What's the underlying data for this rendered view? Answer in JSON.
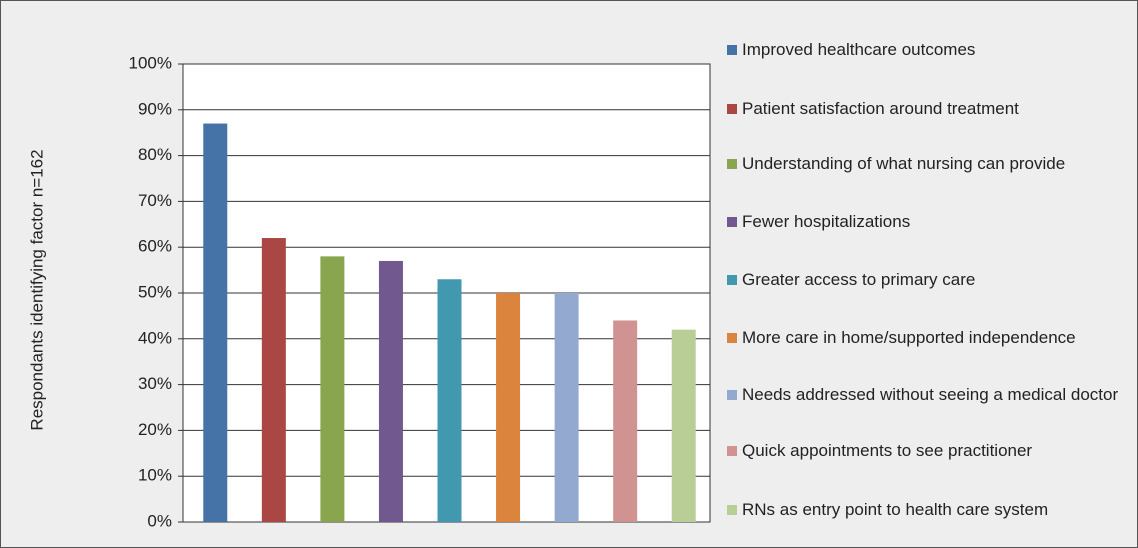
{
  "chart_data": {
    "type": "bar",
    "y_label": "Respondants identifying factor n=162",
    "categories": [
      "Improved healthcare outcomes",
      "Patient satisfaction around treatment",
      "Understanding of what nursing can provide",
      "Fewer hospitalizations",
      "Greater access to primary care",
      "More care in home/supported independence",
      "Needs addressed without seeing a medical doctor",
      "Quick appointments to see practitioner",
      "RNs as entry point to health care system"
    ],
    "values": [
      87,
      62,
      58,
      57,
      53,
      50,
      50,
      44,
      42
    ],
    "colors": [
      "#4572a7",
      "#aa4643",
      "#89a54e",
      "#71588f",
      "#4198af",
      "#db843d",
      "#93a9cf",
      "#d19392",
      "#b9cd96"
    ],
    "ylim": [
      0,
      100
    ],
    "yticks": [
      {
        "value": 0,
        "label": "0%"
      },
      {
        "value": 10,
        "label": "10%"
      },
      {
        "value": 20,
        "label": "20%"
      },
      {
        "value": 30,
        "label": "30%"
      },
      {
        "value": 40,
        "label": "40%"
      },
      {
        "value": 50,
        "label": "50%"
      },
      {
        "value": 60,
        "label": "60%"
      },
      {
        "value": 70,
        "label": "70%"
      },
      {
        "value": 80,
        "label": "80%"
      },
      {
        "value": 90,
        "label": "90%"
      },
      {
        "value": 100,
        "label": "100%"
      }
    ],
    "grid": true,
    "legend": "right"
  }
}
